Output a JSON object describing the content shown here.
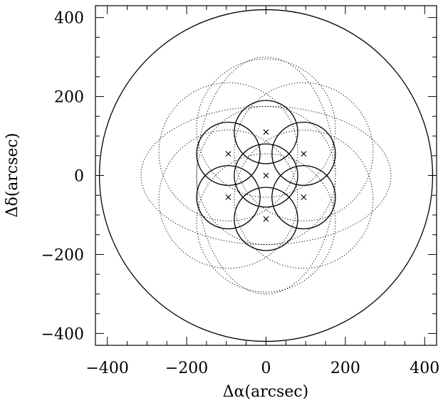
{
  "chart_data": {
    "type": "scatter",
    "xlabel": "Δα(arcsec)",
    "ylabel": "Δδ(arcsec)",
    "xlim": [
      -430,
      430
    ],
    "ylim": [
      -430,
      430
    ],
    "xticks": [
      -400,
      -200,
      0,
      200,
      400
    ],
    "yticks": [
      -400,
      -200,
      0,
      200,
      400
    ],
    "xtick_labels": [
      "−400",
      "−200",
      "0",
      "200",
      "400"
    ],
    "ytick_labels": [
      "−400",
      "−200",
      "0",
      "200",
      "400"
    ],
    "grid": false,
    "field_of_view_circle": {
      "x": 0,
      "y": 0,
      "r": 420
    },
    "pointing_centers": [
      {
        "x": 0,
        "y": 0
      },
      {
        "x": 0,
        "y": 110
      },
      {
        "x": 95,
        "y": 55
      },
      {
        "x": 95,
        "y": -55
      },
      {
        "x": 0,
        "y": -110
      },
      {
        "x": -95,
        "y": -55
      },
      {
        "x": -95,
        "y": 55
      }
    ],
    "solid_circle_radius": 80,
    "dotted_ellipses": [
      {
        "x": 0,
        "y": 0,
        "rx": 175,
        "ry": 175
      },
      {
        "x": 0,
        "y": 0,
        "rx": 315,
        "ry": 175
      },
      {
        "x": 0,
        "y": 0,
        "rx": 175,
        "ry": 300
      },
      {
        "x": 0,
        "y": 120,
        "rx": 175,
        "ry": 175
      },
      {
        "x": 0,
        "y": -120,
        "rx": 175,
        "ry": 175
      },
      {
        "x": 95,
        "y": 60,
        "rx": 175,
        "ry": 175
      },
      {
        "x": -95,
        "y": 60,
        "rx": 175,
        "ry": 175
      },
      {
        "x": 95,
        "y": -60,
        "rx": 175,
        "ry": 175
      },
      {
        "x": -95,
        "y": -60,
        "rx": 175,
        "ry": 175
      }
    ]
  }
}
